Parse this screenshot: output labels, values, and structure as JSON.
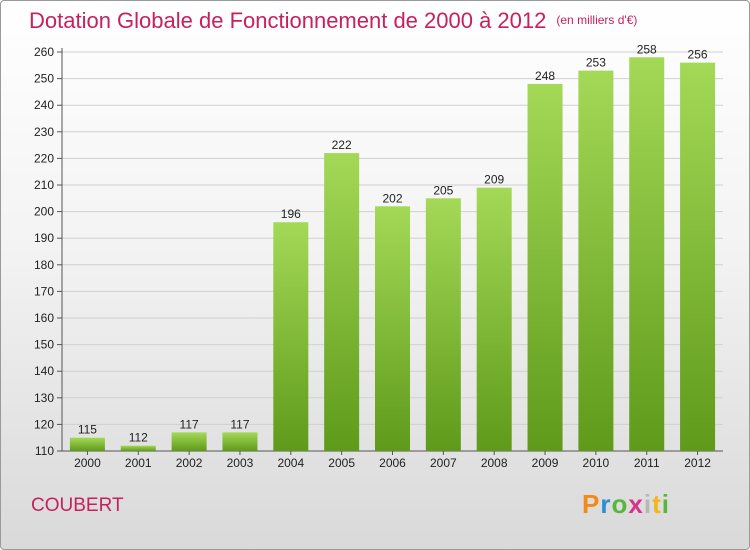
{
  "header": {
    "title": "Dotation Globale de Fonctionnement de 2000 à 2012",
    "unit": "(en milliers d'€)"
  },
  "footer": {
    "commune": "COUBERT",
    "brand": "Proxiti"
  },
  "colors": {
    "title": "#c8205e",
    "bar_light": "#a4d957",
    "bar_dark": "#5f9a1a",
    "grid": "#d0d0d0"
  },
  "chart_data": {
    "type": "bar",
    "categories": [
      "2000",
      "2001",
      "2002",
      "2003",
      "2004",
      "2005",
      "2006",
      "2007",
      "2008",
      "2009",
      "2010",
      "2011",
      "2012"
    ],
    "values": [
      115,
      112,
      117,
      117,
      196,
      222,
      202,
      205,
      209,
      248,
      253,
      258,
      256
    ],
    "ylim": [
      110,
      260
    ],
    "yticks": [
      110,
      120,
      130,
      140,
      150,
      160,
      170,
      180,
      190,
      200,
      210,
      220,
      230,
      240,
      250,
      260
    ],
    "grid": true,
    "data_labels": true
  }
}
